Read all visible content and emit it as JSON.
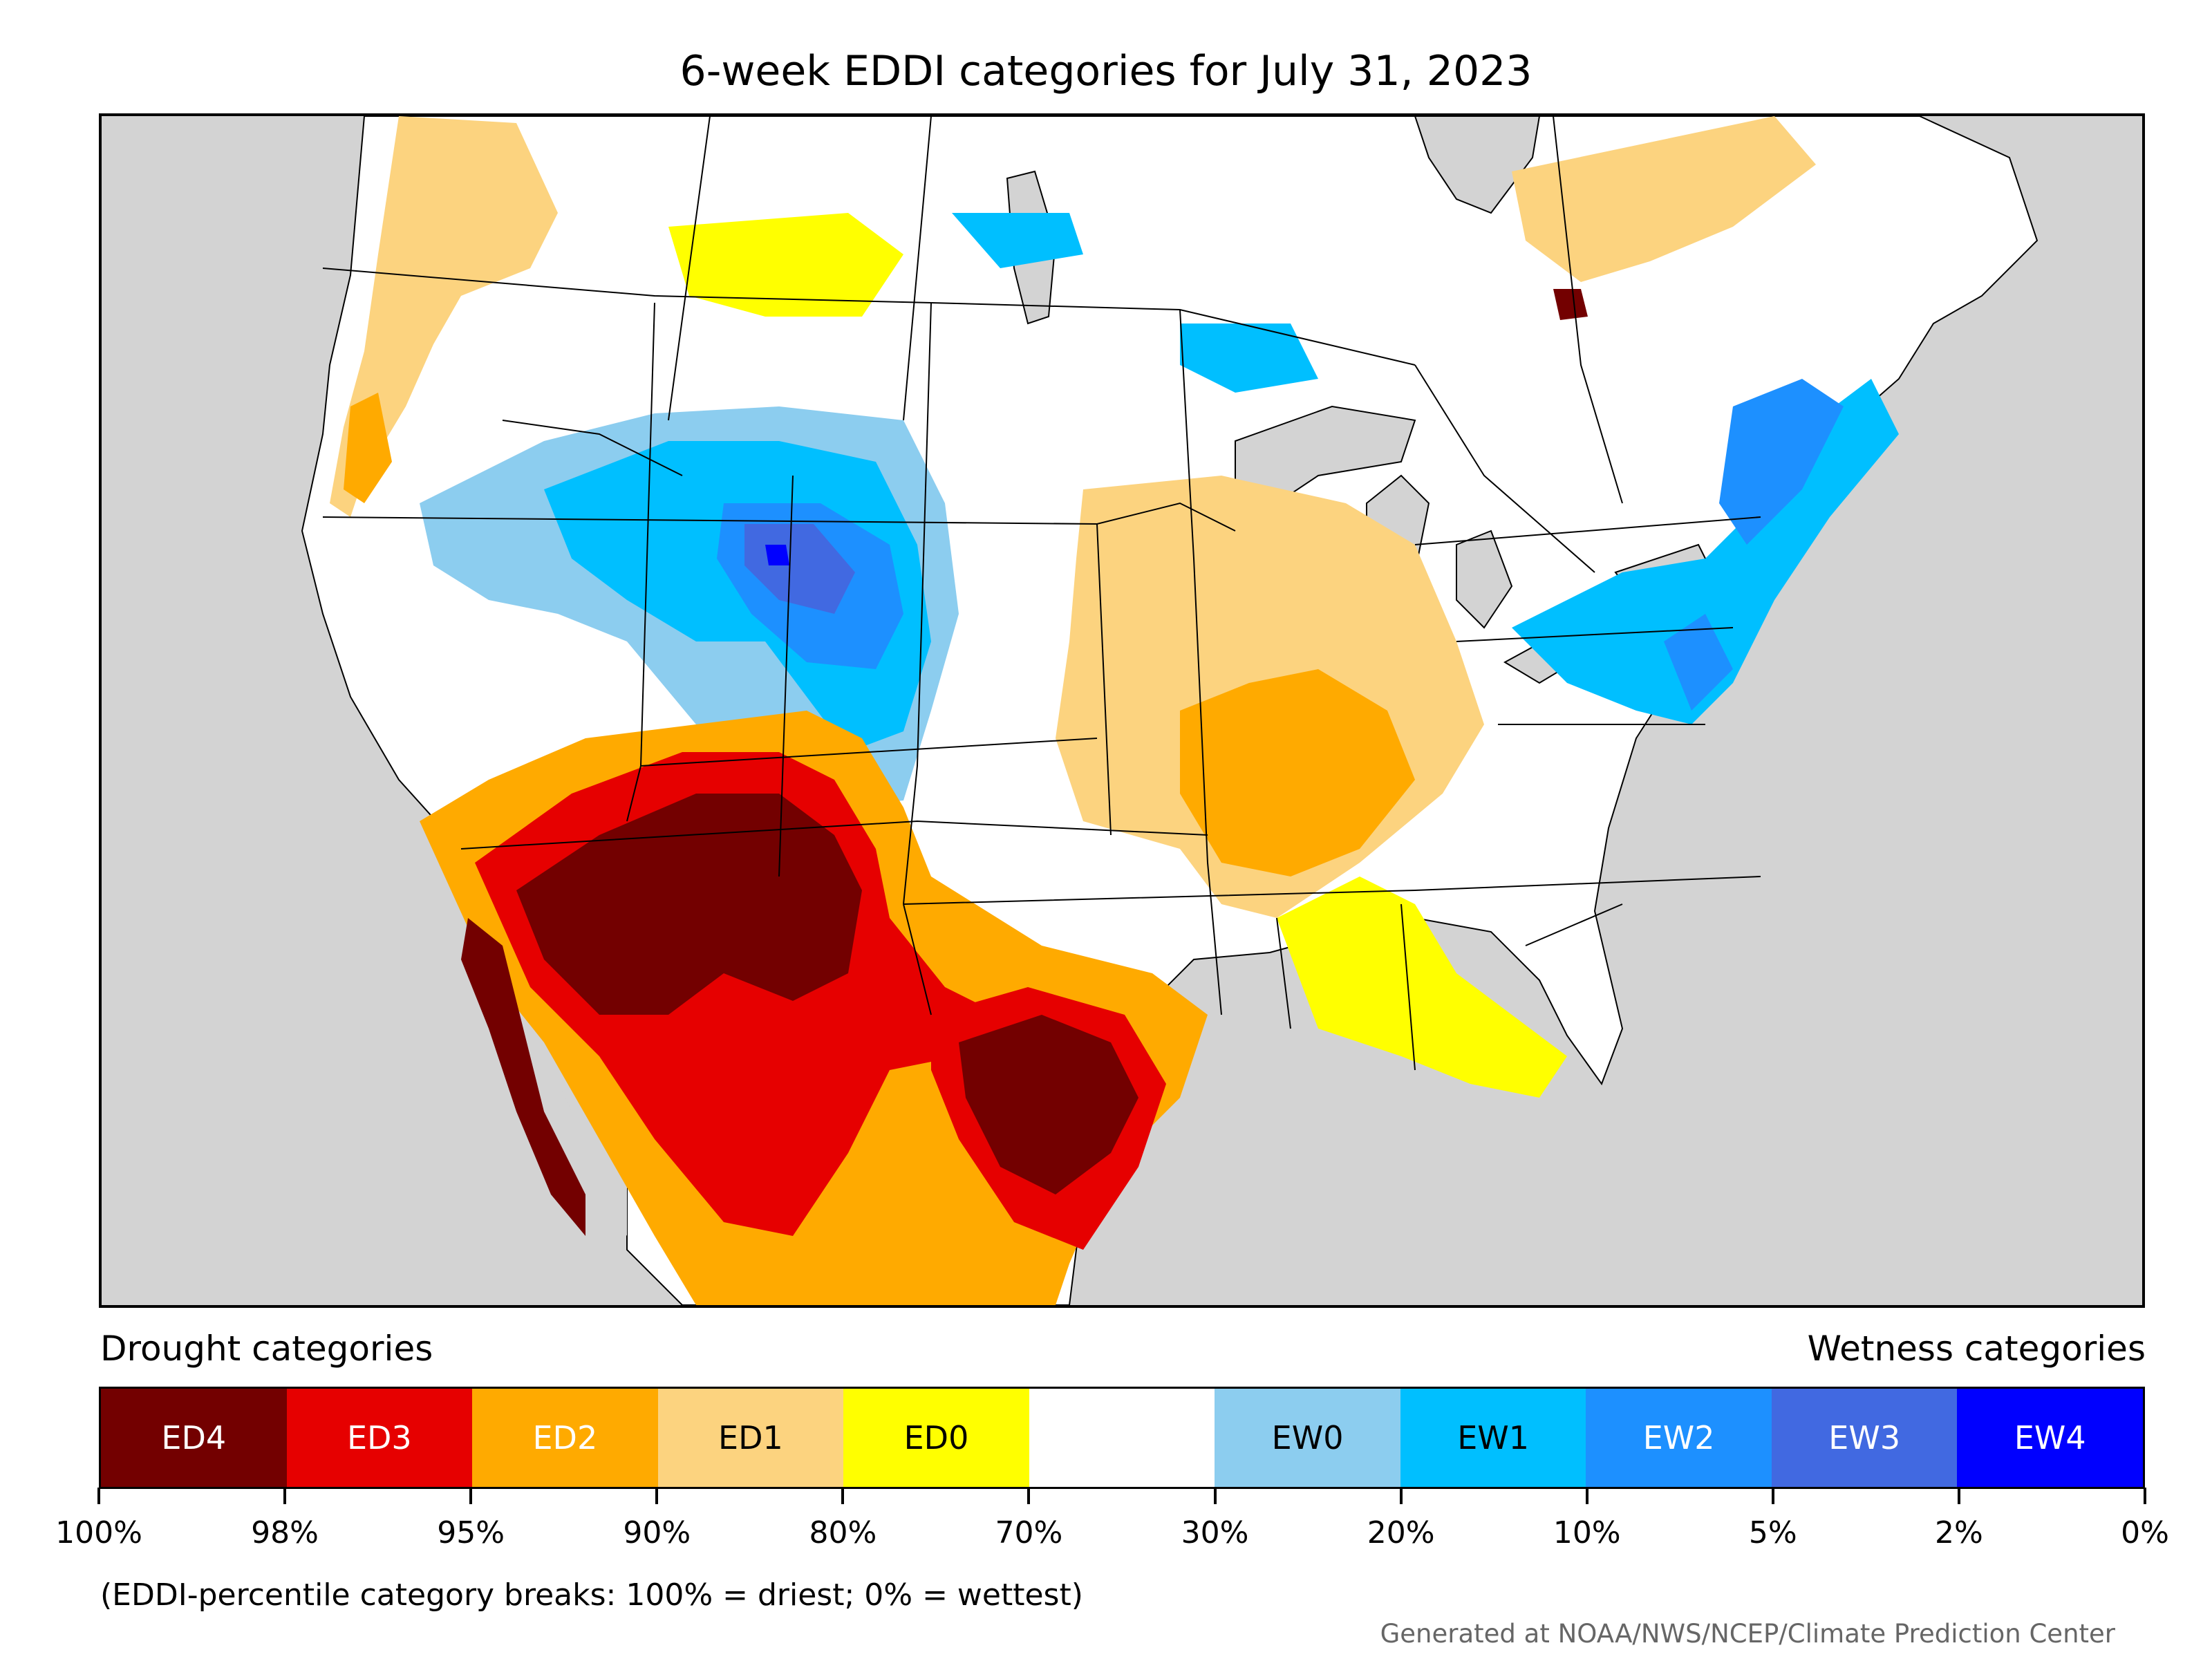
{
  "title": "6-week EDDI categories for July 31, 2023",
  "legend": {
    "drought_heading": "Drought categories",
    "wetness_heading": "Wetness categories",
    "categories": [
      {
        "label": "ED4",
        "color": "#730000",
        "text_color": "#ffffff"
      },
      {
        "label": "ED3",
        "color": "#e60000",
        "text_color": "#ffffff"
      },
      {
        "label": "ED2",
        "color": "#ffaa00",
        "text_color": "#ffffff"
      },
      {
        "label": "ED1",
        "color": "#fcd37f",
        "text_color": "#000000"
      },
      {
        "label": "ED0",
        "color": "#ffff00",
        "text_color": "#000000"
      },
      {
        "label": "",
        "color": "#ffffff",
        "text_color": "#000000"
      },
      {
        "label": "EW0",
        "color": "#8ccdef",
        "text_color": "#000000"
      },
      {
        "label": "EW1",
        "color": "#00bfff",
        "text_color": "#000000"
      },
      {
        "label": "EW2",
        "color": "#1d90ff",
        "text_color": "#ffffff"
      },
      {
        "label": "EW3",
        "color": "#4169e1",
        "text_color": "#ffffff"
      },
      {
        "label": "EW4",
        "color": "#0000ff",
        "text_color": "#ffffff"
      }
    ],
    "tick_labels": [
      "100%",
      "98%",
      "95%",
      "90%",
      "80%",
      "70%",
      "30%",
      "20%",
      "10%",
      "5%",
      "2%",
      "0%"
    ]
  },
  "note": "(EDDI-percentile category breaks: 100% = driest; 0% = wettest)",
  "credit": "Generated at NOAA/NWS/NCEP/Climate Prediction Center",
  "map": {
    "background_color": "#d3d3d3",
    "land_color": "#ffffff",
    "regions": [
      {
        "name": "southwest-ed4",
        "category": "ED4"
      },
      {
        "name": "southwest-ed3",
        "category": "ED3"
      },
      {
        "name": "texas-ed4",
        "category": "ED4"
      },
      {
        "name": "midwest-ed1",
        "category": "ED1"
      },
      {
        "name": "midwest-ed2",
        "category": "ED2"
      },
      {
        "name": "rockies-ew1",
        "category": "EW1"
      },
      {
        "name": "wyoming-ew3",
        "category": "EW3"
      },
      {
        "name": "northeast-ew2",
        "category": "EW2"
      },
      {
        "name": "quebec-ed1",
        "category": "ED1"
      }
    ]
  }
}
